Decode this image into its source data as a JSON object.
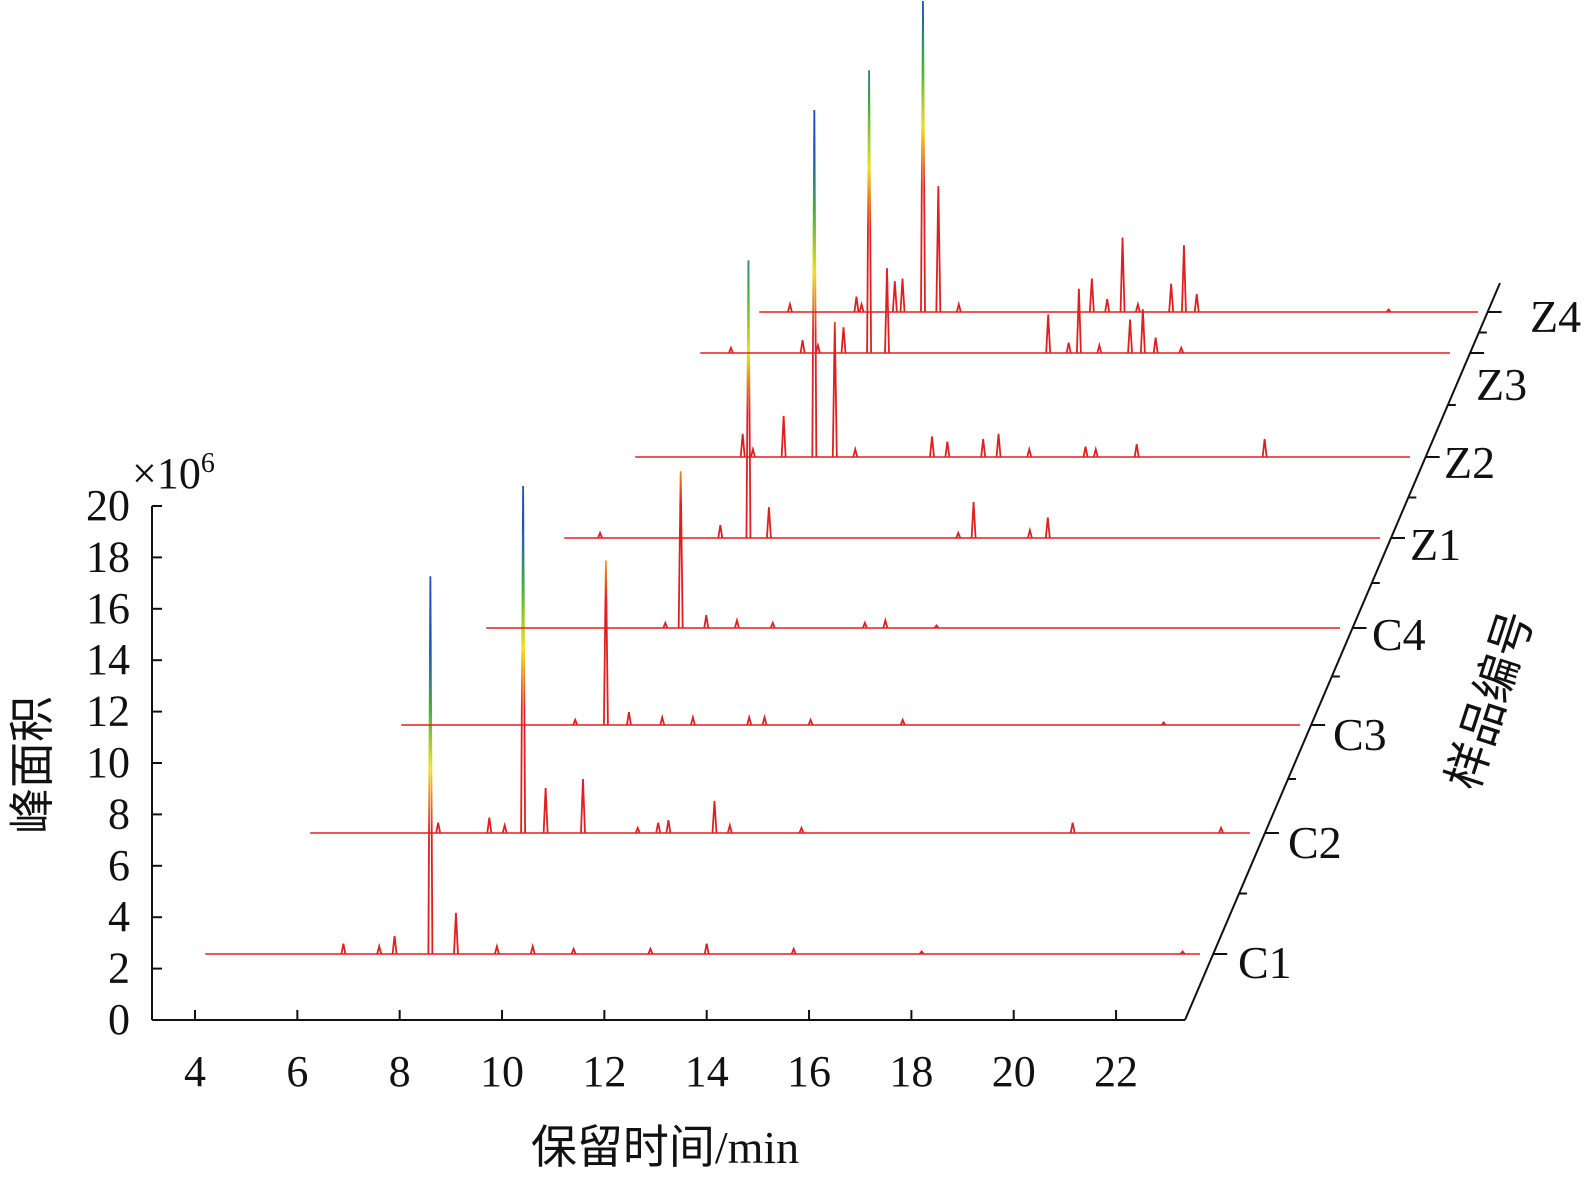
{
  "chart_data": {
    "type": "line",
    "subtype": "3d-waterfall-chromatogram",
    "xlabel": "保留时间/min",
    "ylabel": "峰面积",
    "zlabel": "样品编号",
    "y_multiplier": "×10",
    "y_multiplier_exp": "6",
    "xlim": [
      3.1,
      23.5
    ],
    "ylim": [
      0,
      20
    ],
    "xticks": [
      "4",
      "6",
      "8",
      "10",
      "12",
      "14",
      "16",
      "18",
      "20",
      "22"
    ],
    "yticks": [
      "0",
      "2",
      "4",
      "6",
      "8",
      "10",
      "12",
      "14",
      "16",
      "18",
      "20"
    ],
    "colors": {
      "baseline": "#e02020",
      "low": "#e02020",
      "mid": "#f0e020",
      "high": "#40b040",
      "top": "#2050c0"
    },
    "series": [
      {
        "name": "C1",
        "range": [
          4.2,
          23.6
        ],
        "peaks": [
          [
            6.9,
            0.4
          ],
          [
            7.6,
            0.3
          ],
          [
            7.9,
            0.7
          ],
          [
            8.6,
            14.7
          ],
          [
            9.1,
            1.6
          ],
          [
            9.9,
            0.3
          ],
          [
            10.6,
            0.3
          ],
          [
            11.4,
            0.2
          ],
          [
            12.9,
            0.2
          ],
          [
            14.0,
            0.4
          ],
          [
            15.7,
            0.2
          ],
          [
            18.2,
            0.1
          ],
          [
            23.3,
            0.1
          ]
        ]
      },
      {
        "name": "C2",
        "range": [
          4.2,
          22.5
        ],
        "peaks": [
          [
            6.7,
            0.4
          ],
          [
            7.7,
            0.6
          ],
          [
            8.0,
            0.3
          ],
          [
            8.36,
            13.5
          ],
          [
            8.8,
            1.75
          ],
          [
            9.53,
            2.1
          ],
          [
            10.6,
            0.2
          ],
          [
            11.0,
            0.4
          ],
          [
            11.2,
            0.5
          ],
          [
            12.1,
            1.25
          ],
          [
            12.4,
            0.3
          ],
          [
            13.8,
            0.2
          ],
          [
            19.1,
            0.4
          ],
          [
            22.0,
            0.2
          ]
        ]
      },
      {
        "name": "C3",
        "range": [
          4.2,
          21.7
        ],
        "peaks": [
          [
            7.6,
            0.2
          ],
          [
            8.2,
            6.4
          ],
          [
            8.65,
            0.5
          ],
          [
            9.3,
            0.3
          ],
          [
            9.9,
            0.3
          ],
          [
            11.0,
            0.3
          ],
          [
            11.3,
            0.3
          ],
          [
            12.2,
            0.2
          ],
          [
            14.0,
            0.2
          ],
          [
            19.1,
            0.1
          ]
        ]
      },
      {
        "name": "C4",
        "range": [
          4.2,
          20.8
        ],
        "peaks": [
          [
            7.7,
            0.2
          ],
          [
            8.0,
            6.1
          ],
          [
            8.5,
            0.5
          ],
          [
            9.1,
            0.3
          ],
          [
            9.8,
            0.2
          ],
          [
            11.6,
            0.2
          ],
          [
            12.0,
            0.3
          ],
          [
            13.0,
            0.1
          ]
        ]
      },
      {
        "name": "Z1",
        "range": [
          4.2,
          20.1
        ],
        "peaks": [
          [
            4.9,
            0.2
          ],
          [
            7.25,
            0.5
          ],
          [
            7.8,
            10.8
          ],
          [
            8.2,
            1.2
          ],
          [
            11.9,
            0.2
          ],
          [
            12.2,
            1.4
          ],
          [
            13.3,
            0.3
          ],
          [
            13.65,
            0.8
          ]
        ]
      },
      {
        "name": "Z2",
        "range": [
          4.2,
          19.3
        ],
        "peaks": [
          [
            6.3,
            0.9
          ],
          [
            6.5,
            0.3
          ],
          [
            7.1,
            1.6
          ],
          [
            7.7,
            13.5
          ],
          [
            8.1,
            5.25
          ],
          [
            8.5,
            0.3
          ],
          [
            10.0,
            0.8
          ],
          [
            10.3,
            0.6
          ],
          [
            11.0,
            0.7
          ],
          [
            11.3,
            0.9
          ],
          [
            11.9,
            0.3
          ],
          [
            13.0,
            0.4
          ],
          [
            13.2,
            0.3
          ],
          [
            14.0,
            0.5
          ],
          [
            16.5,
            0.7
          ]
        ]
      },
      {
        "name": "Z3",
        "range": [
          4.2,
          18.8
        ],
        "peaks": [
          [
            4.8,
            0.2
          ],
          [
            6.2,
            0.5
          ],
          [
            6.5,
            0.3
          ],
          [
            7.0,
            1.0
          ],
          [
            7.5,
            11.0
          ],
          [
            7.85,
            3.3
          ],
          [
            11.0,
            1.5
          ],
          [
            11.6,
            2.5
          ],
          [
            11.4,
            0.4
          ],
          [
            12.0,
            0.3
          ],
          [
            12.6,
            1.3
          ],
          [
            12.85,
            1.7
          ],
          [
            13.1,
            0.6
          ],
          [
            13.6,
            0.2
          ]
        ]
      },
      {
        "name": "Z4",
        "range": [
          4.2,
          18.2
        ],
        "peaks": [
          [
            4.8,
            0.3
          ],
          [
            6.1,
            0.6
          ],
          [
            6.2,
            0.3
          ],
          [
            6.85,
            1.2
          ],
          [
            7.0,
            1.3
          ],
          [
            7.4,
            12.1
          ],
          [
            7.7,
            4.9
          ],
          [
            8.1,
            0.3
          ],
          [
            10.7,
            1.3
          ],
          [
            11.0,
            0.5
          ],
          [
            11.3,
            2.9
          ],
          [
            11.6,
            0.3
          ],
          [
            12.25,
            1.1
          ],
          [
            12.5,
            2.6
          ],
          [
            12.75,
            0.7
          ],
          [
            16.5,
            0.1
          ]
        ]
      }
    ]
  }
}
